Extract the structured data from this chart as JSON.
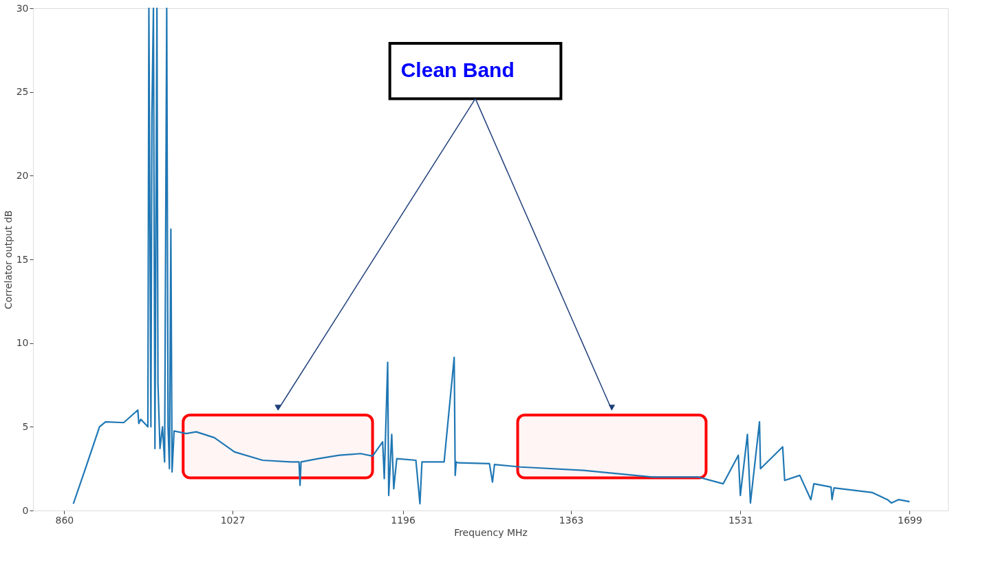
{
  "chart_data": {
    "type": "line",
    "xlabel": "Frequency MHz",
    "ylabel": "Correlator output dB",
    "xlim": [
      829,
      1737
    ],
    "xticks": [
      860,
      1027,
      1196,
      1363,
      1531,
      1699
    ],
    "ylim": [
      0,
      30
    ],
    "yticks": [
      0,
      5,
      10,
      15,
      20,
      25,
      30
    ],
    "grid": false,
    "annotations": [
      "Clean Band"
    ],
    "bands": [
      {
        "axis": "x",
        "from": 978,
        "to": 1166,
        "color": "#ff0000"
      },
      {
        "axis": "x",
        "from": 1310,
        "to": 1497,
        "color": "#ff0000"
      }
    ],
    "series": [
      {
        "color": "#1f77b4",
        "x": [
          869,
          881,
          895,
          901,
          919,
          933,
          934,
          936,
          943,
          944,
          946,
          947,
          948.5,
          950,
          952,
          953,
          955,
          957.5,
          959.6,
          961.7,
          963,
          964.4,
          965.8,
          967,
          969,
          981,
          991,
          1009,
          1029,
          1057,
          1085,
          1093,
          1094,
          1095,
          1112,
          1133,
          1154,
          1166,
          1176,
          1177.6,
          1181,
          1182,
          1185,
          1187,
          1190,
          1209,
          1213,
          1215,
          1237,
          1247,
          1248,
          1249,
          1251,
          1282,
          1285,
          1287,
          1313,
          1375,
          1444,
          1489,
          1514,
          1529,
          1531,
          1538,
          1541,
          1550,
          1551,
          1573,
          1575,
          1590,
          1601,
          1604,
          1621,
          1622,
          1624,
          1662,
          1677,
          1681,
          1688,
          1699
        ],
        "values": [
          0.4,
          2.5,
          5.0,
          5.3,
          5.25,
          6.0,
          5.2,
          5.45,
          5.0,
          30,
          5.0,
          23.6,
          30,
          3.7,
          30,
          7.6,
          3.7,
          5.0,
          2.9,
          30,
          5.0,
          2.5,
          16.8,
          2.3,
          4.75,
          4.6,
          4.7,
          4.35,
          3.5,
          3.0,
          2.9,
          2.9,
          1.5,
          2.9,
          3.1,
          3.3,
          3.4,
          3.25,
          4.1,
          1.9,
          8.85,
          0.9,
          4.55,
          1.3,
          3.1,
          3.0,
          0.4,
          2.9,
          2.9,
          9.15,
          2.1,
          2.9,
          2.85,
          2.8,
          1.7,
          2.75,
          2.6,
          2.4,
          2.0,
          2.0,
          1.6,
          3.3,
          0.9,
          4.55,
          0.45,
          5.3,
          2.5,
          3.8,
          1.8,
          2.1,
          0.65,
          1.6,
          1.4,
          0.65,
          1.35,
          1.07,
          0.65,
          0.45,
          0.65,
          0.53
        ]
      }
    ]
  }
}
